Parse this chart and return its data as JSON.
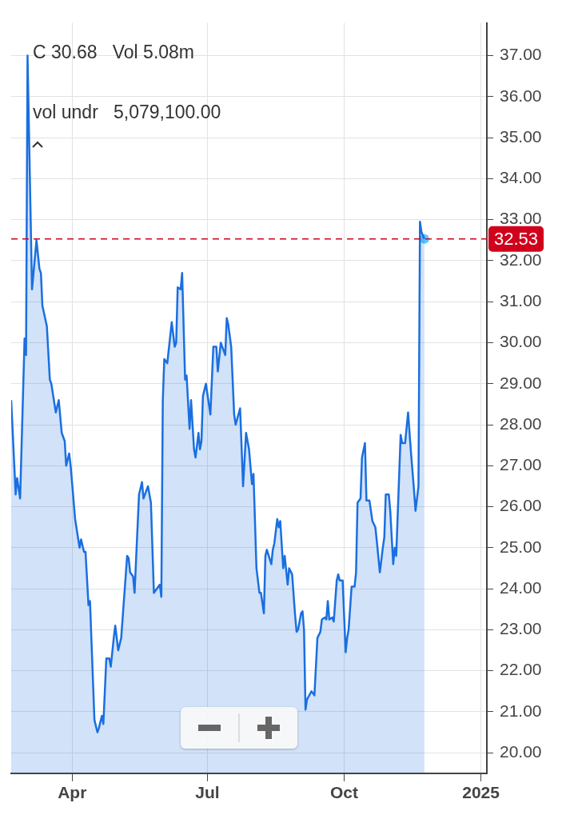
{
  "chart_data": {
    "type": "area",
    "annotations": [
      "C 30.68   Vol 5.08m",
      "vol undr   5,079,100.00"
    ],
    "xlim": [
      "2024-02-20",
      "2025-01-05"
    ],
    "xticks": [
      {
        "value": "2024-04-01",
        "label": "Apr"
      },
      {
        "value": "2024-07-01",
        "label": "Jul"
      },
      {
        "value": "2024-10-01",
        "label": "Oct"
      },
      {
        "value": "2025-01-01",
        "label": "2025"
      }
    ],
    "ylim": [
      19.5,
      37.8
    ],
    "yticks": [
      {
        "value": 20,
        "label": "20.00"
      },
      {
        "value": 21,
        "label": "21.00"
      },
      {
        "value": 22,
        "label": "22.00"
      },
      {
        "value": 23,
        "label": "23.00"
      },
      {
        "value": 24,
        "label": "24.00"
      },
      {
        "value": 25,
        "label": "25.00"
      },
      {
        "value": 26,
        "label": "26.00"
      },
      {
        "value": 27,
        "label": "27.00"
      },
      {
        "value": 28,
        "label": "28.00"
      },
      {
        "value": 29,
        "label": "29.00"
      },
      {
        "value": 30,
        "label": "30.00"
      },
      {
        "value": 31,
        "label": "31.00"
      },
      {
        "value": 32,
        "label": "32.00"
      },
      {
        "value": 33,
        "label": "33.00"
      },
      {
        "value": 34,
        "label": "34.00"
      },
      {
        "value": 35,
        "label": "35.00"
      },
      {
        "value": 36,
        "label": "36.00"
      },
      {
        "value": 37,
        "label": "37.00"
      }
    ],
    "grid": true,
    "marker": "none",
    "line_style": "solid",
    "ref_lines": [
      {
        "axis": "y",
        "value": 32.53,
        "label": "32.53",
        "color": "#d0021b",
        "line_style": "dashed"
      }
    ],
    "series": [
      {
        "type": "area",
        "color": "#1a6fe0",
        "x": [
          "2024-02-20",
          "2024-02-23",
          "2024-02-24",
          "2024-02-26",
          "2024-02-28",
          "2024-02-29",
          "2024-03-01",
          "2024-03-02",
          "2024-03-05",
          "2024-03-08",
          "2024-03-10",
          "2024-03-11",
          "2024-03-12",
          "2024-03-15",
          "2024-03-17",
          "2024-03-18",
          "2024-03-21",
          "2024-03-23",
          "2024-03-25",
          "2024-03-27",
          "2024-03-28",
          "2024-03-30",
          "2024-03-31",
          "2024-04-03",
          "2024-04-06",
          "2024-04-07",
          "2024-04-09",
          "2024-04-10",
          "2024-04-12",
          "2024-04-13",
          "2024-04-16",
          "2024-04-18",
          "2024-04-19",
          "2024-04-21",
          "2024-04-22",
          "2024-04-24",
          "2024-04-26",
          "2024-04-27",
          "2024-04-29",
          "2024-04-30",
          "2024-05-02",
          "2024-05-04",
          "2024-05-08",
          "2024-05-09",
          "2024-05-10",
          "2024-05-12",
          "2024-05-13",
          "2024-05-16",
          "2024-05-18",
          "2024-05-19",
          "2024-05-22",
          "2024-05-24",
          "2024-05-26",
          "2024-05-28",
          "2024-05-30",
          "2024-05-31",
          "2024-06-01",
          "2024-06-02",
          "2024-06-04",
          "2024-06-07",
          "2024-06-09",
          "2024-06-10",
          "2024-06-11",
          "2024-06-13",
          "2024-06-14",
          "2024-06-16",
          "2024-06-17",
          "2024-06-19",
          "2024-06-20",
          "2024-06-22",
          "2024-06-23",
          "2024-06-25",
          "2024-06-26",
          "2024-06-27",
          "2024-06-28",
          "2024-06-30",
          "2024-07-03",
          "2024-07-05",
          "2024-07-07",
          "2024-07-08",
          "2024-07-10",
          "2024-07-13",
          "2024-07-14",
          "2024-07-15",
          "2024-07-17",
          "2024-07-19",
          "2024-07-20",
          "2024-07-23",
          "2024-07-25",
          "2024-07-27",
          "2024-07-29",
          "2024-07-31",
          "2024-08-01",
          "2024-08-03",
          "2024-08-05",
          "2024-08-06",
          "2024-08-08",
          "2024-08-09",
          "2024-08-10",
          "2024-08-13",
          "2024-08-14",
          "2024-08-15",
          "2024-08-17",
          "2024-08-18",
          "2024-08-19",
          "2024-08-21",
          "2024-08-22",
          "2024-08-24",
          "2024-08-25",
          "2024-08-27",
          "2024-08-29",
          "2024-08-30",
          "2024-08-31",
          "2024-09-02",
          "2024-09-03",
          "2024-09-04",
          "2024-09-05",
          "2024-09-06",
          "2024-09-09",
          "2024-09-11",
          "2024-09-13",
          "2024-09-15",
          "2024-09-16",
          "2024-09-18",
          "2024-09-19",
          "2024-09-20",
          "2024-09-21",
          "2024-09-23",
          "2024-09-24",
          "2024-09-26",
          "2024-09-27",
          "2024-09-28",
          "2024-09-30",
          "2024-10-02",
          "2024-10-03",
          "2024-10-04",
          "2024-10-06",
          "2024-10-08",
          "2024-10-09",
          "2024-10-10",
          "2024-10-12",
          "2024-10-13",
          "2024-10-15",
          "2024-10-16",
          "2024-10-18",
          "2024-10-20",
          "2024-10-22",
          "2024-10-23",
          "2024-10-25",
          "2024-10-27",
          "2024-10-28",
          "2024-10-29",
          "2024-10-31",
          "2024-11-01",
          "2024-11-03",
          "2024-11-04",
          "2024-11-05",
          "2024-11-08",
          "2024-11-09",
          "2024-11-11",
          "2024-11-13",
          "2024-11-15",
          "2024-11-17",
          "2024-11-18",
          "2024-11-20",
          "2024-11-21",
          "2024-11-22",
          "2024-11-24"
        ],
        "values": [
          28.6,
          26.3,
          26.7,
          26.2,
          28.8,
          30.1,
          29.7,
          37.0,
          31.3,
          32.5,
          31.8,
          31.7,
          30.9,
          30.4,
          29.1,
          29.0,
          28.3,
          28.6,
          27.8,
          27.6,
          27.0,
          27.3,
          27.0,
          25.7,
          25.0,
          25.2,
          24.9,
          24.9,
          23.6,
          23.7,
          20.8,
          20.5,
          20.6,
          20.9,
          20.7,
          22.3,
          22.3,
          22.1,
          22.8,
          23.1,
          22.5,
          22.8,
          24.8,
          24.75,
          24.4,
          24.3,
          23.9,
          26.3,
          26.6,
          26.2,
          26.5,
          26.1,
          23.9,
          24.0,
          24.1,
          23.8,
          28.6,
          29.6,
          29.5,
          30.5,
          29.9,
          30.0,
          31.35,
          31.3,
          31.7,
          29.1,
          29.2,
          27.9,
          28.6,
          27.4,
          27.2,
          27.8,
          27.4,
          27.6,
          28.7,
          29.0,
          28.25,
          29.9,
          29.9,
          29.3,
          30.0,
          29.7,
          30.6,
          30.45,
          29.9,
          28.25,
          28.0,
          28.4,
          26.5,
          27.8,
          27.4,
          26.55,
          26.8,
          24.5,
          23.9,
          23.9,
          23.4,
          24.8,
          24.95,
          24.6,
          24.95,
          25.1,
          25.7,
          25.5,
          25.65,
          24.5,
          24.8,
          24.1,
          24.5,
          24.35,
          23.35,
          22.95,
          23.0,
          23.4,
          23.45,
          23.0,
          21.05,
          21.3,
          21.5,
          21.4,
          22.8,
          22.95,
          23.25,
          23.3,
          23.25,
          23.7,
          23.25,
          23.3,
          23.2,
          24.2,
          24.35,
          24.2,
          24.2,
          22.45,
          22.8,
          23.0,
          24.05,
          24.05,
          24.4,
          26.1,
          26.2,
          27.2,
          27.55,
          26.15,
          26.15,
          25.65,
          25.5,
          25.15,
          24.4,
          25.0,
          25.25,
          26.3,
          26.3,
          25.9,
          24.6,
          25.0,
          24.8,
          27.75,
          27.55,
          27.55,
          28.3,
          27.3,
          26.4,
          25.9,
          26.5,
          32.95,
          32.7,
          32.53
        ]
      },
      {
        "type": "scatter",
        "color": "#5ac8fa",
        "marker": "circle",
        "x": [
          "2024-11-24"
        ],
        "values": [
          32.53
        ]
      }
    ]
  }
}
